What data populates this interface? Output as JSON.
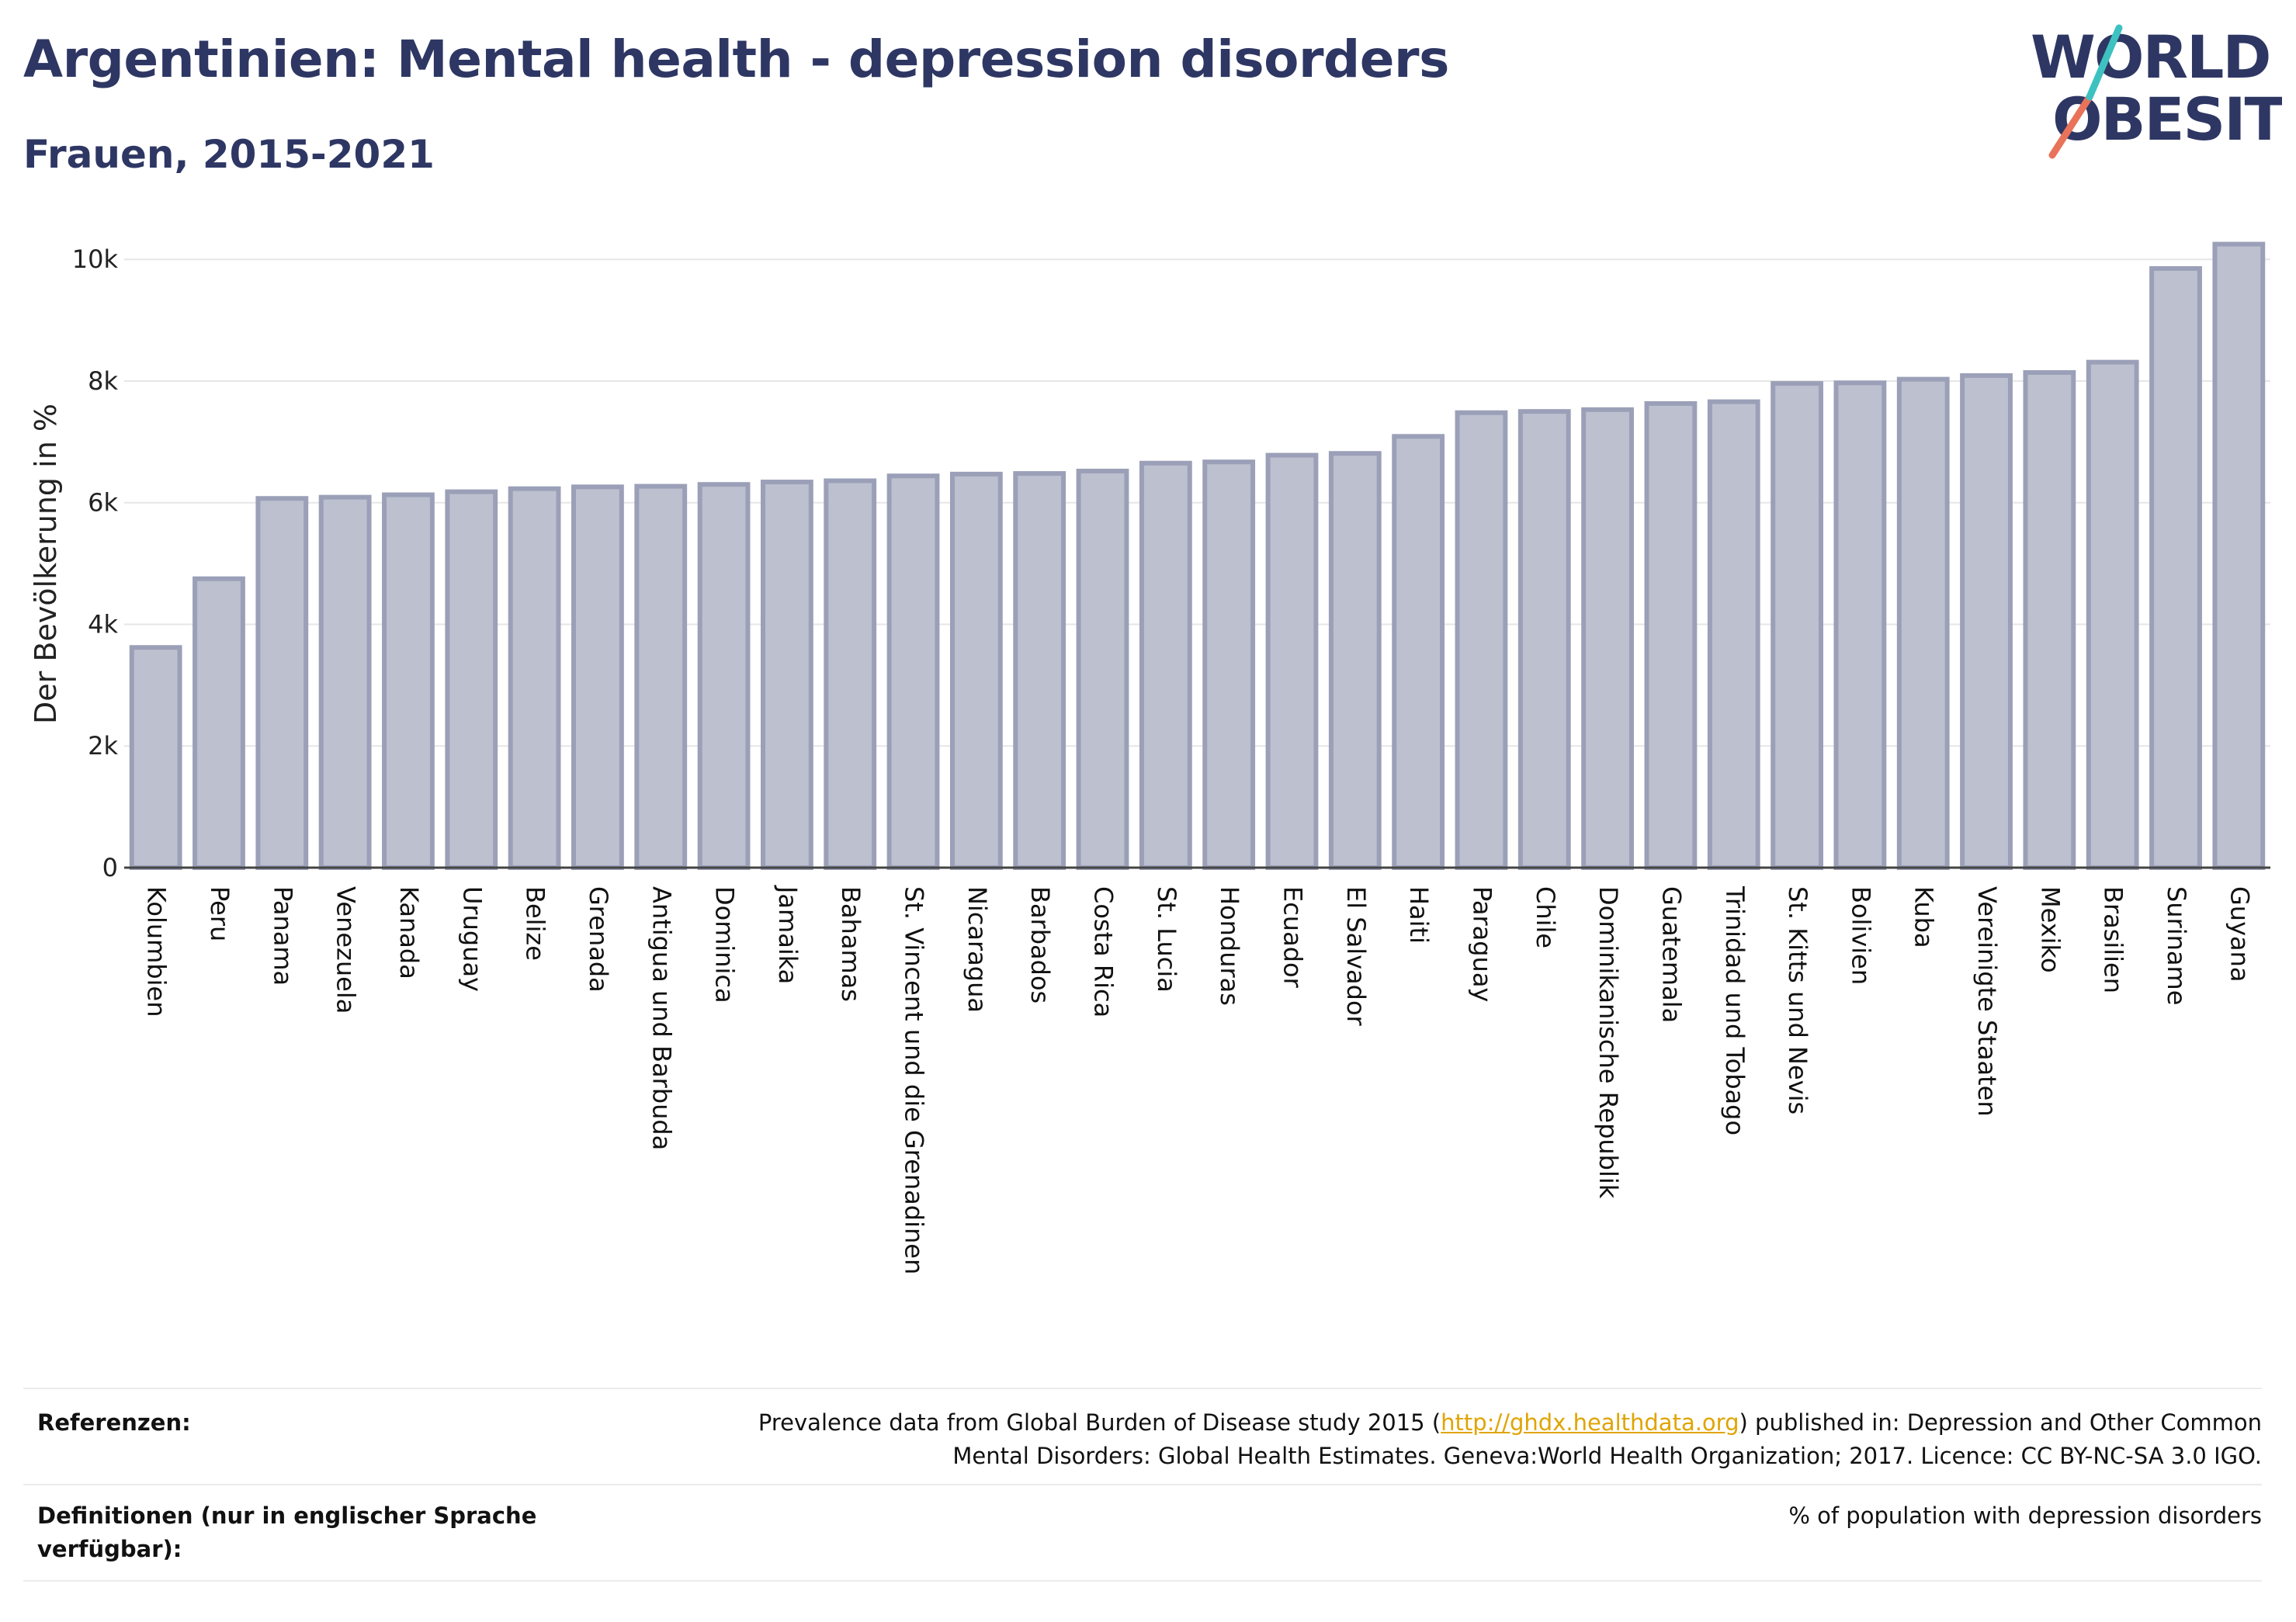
{
  "header": {
    "title": "Argentinien: Mental health - depression disorders",
    "subtitle": "Frauen, 2015-2021"
  },
  "logo": {
    "line1": "WORLD",
    "line2": "OBESITY",
    "slash_colors": [
      "#e8735a",
      "#3ec1c1"
    ],
    "text_color": "#2e3763"
  },
  "colors": {
    "bar_fill": "#bcc0cf",
    "bar_stroke": "#9ba0b8",
    "title": "#2e3763",
    "link": "#e0a400"
  },
  "chart_data": {
    "type": "bar",
    "title": "",
    "xlabel": "",
    "ylabel": "Der Bevölkerung in %",
    "ylim": [
      0,
      10500
    ],
    "yticks": [
      0,
      2000,
      4000,
      6000,
      8000,
      10000
    ],
    "ytick_labels": [
      "0",
      "2k",
      "4k",
      "6k",
      "8k",
      "10k"
    ],
    "grid": true,
    "categories": [
      "Kolumbien",
      "Peru",
      "Panama",
      "Venezuela",
      "Kanada",
      "Uruguay",
      "Belize",
      "Grenada",
      "Antigua und Barbuda",
      "Dominica",
      "Jamaika",
      "Bahamas",
      "St. Vincent und die Grenadinen",
      "Nicaragua",
      "Barbados",
      "Costa Rica",
      "St. Lucia",
      "Honduras",
      "Ecuador",
      "El Salvador",
      "Haiti",
      "Paraguay",
      "Chile",
      "Dominikanische Republik",
      "Guatemala",
      "Trinidad und Tobago",
      "St. Kitts und Nevis",
      "Bolivien",
      "Kuba",
      "Vereinigte Staaten",
      "Mexiko",
      "Brasilien",
      "Suriname",
      "Guyana"
    ],
    "values": [
      3620,
      4750,
      6070,
      6090,
      6130,
      6180,
      6230,
      6260,
      6270,
      6300,
      6340,
      6360,
      6440,
      6470,
      6480,
      6520,
      6650,
      6670,
      6780,
      6810,
      7090,
      7480,
      7500,
      7530,
      7630,
      7660,
      7960,
      7970,
      8030,
      8090,
      8140,
      8310,
      9850,
      10250
    ]
  },
  "footer": {
    "references_label": "Referenzen:",
    "references_text_before": "Prevalence data from Global Burden of Disease study 2015 (",
    "references_link": "http://ghdx.healthdata.org",
    "references_text_after": ") published in: Depression and Other Common",
    "references_line2": "Mental Disorders: Global Health Estimates. Geneva:World Health Organization; 2017. Licence: CC BY-NC-SA 3.0 IGO.",
    "definitions_label": "Definitionen (nur in englischer Sprache verfügbar):",
    "definitions_text": "% of population with depression disorders"
  }
}
